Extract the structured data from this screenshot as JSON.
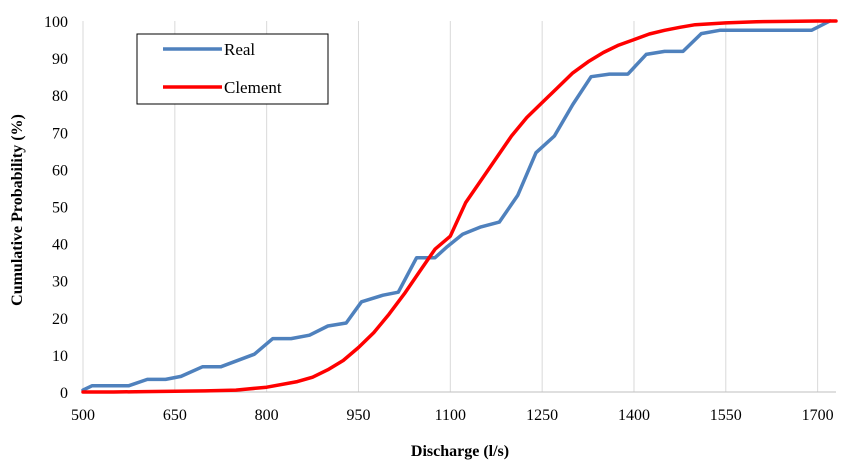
{
  "chart_data": {
    "type": "line",
    "title": "",
    "xlabel": "Discharge (l/s)",
    "ylabel": "Cumulative Probability (%)",
    "xlim": [
      500,
      1730
    ],
    "ylim": [
      0,
      100
    ],
    "xticks": [
      500,
      650,
      800,
      950,
      1100,
      1250,
      1400,
      1550,
      1700
    ],
    "yticks": [
      0,
      10,
      20,
      30,
      40,
      50,
      60,
      70,
      80,
      90,
      100
    ],
    "grid": "vertical",
    "legend": "top-left",
    "series": [
      {
        "name": "Real",
        "color": "#4f81bd",
        "x": [
          500,
          515,
          575,
          605,
          635,
          660,
          695,
          725,
          780,
          810,
          840,
          870,
          900,
          930,
          955,
          990,
          1015,
          1045,
          1075,
          1095,
          1120,
          1150,
          1180,
          1210,
          1240,
          1270,
          1300,
          1330,
          1360,
          1390,
          1420,
          1450,
          1480,
          1510,
          1540,
          1570,
          1600,
          1630,
          1660,
          1690,
          1720
        ],
        "values": [
          0.5,
          1.7,
          1.7,
          3.4,
          3.4,
          4.2,
          6.8,
          6.8,
          10.2,
          14.4,
          14.4,
          15.3,
          17.8,
          18.6,
          24.3,
          26.1,
          26.9,
          36.2,
          36.2,
          39.2,
          42.5,
          44.5,
          45.8,
          53,
          64.5,
          69,
          77.5,
          85,
          85.7,
          85.7,
          91,
          91.8,
          91.8,
          96.6,
          97.5,
          97.5,
          97.5,
          97.5,
          97.5,
          97.5,
          100
        ]
      },
      {
        "name": "Clement",
        "color": "#ff0000",
        "x": [
          500,
          550,
          600,
          650,
          700,
          750,
          800,
          850,
          875,
          900,
          925,
          950,
          975,
          1000,
          1025,
          1050,
          1075,
          1100,
          1125,
          1150,
          1175,
          1200,
          1225,
          1250,
          1275,
          1300,
          1325,
          1350,
          1375,
          1400,
          1425,
          1450,
          1475,
          1500,
          1550,
          1600,
          1650,
          1700,
          1730
        ],
        "values": [
          0,
          0,
          0.1,
          0.2,
          0.3,
          0.5,
          1.3,
          2.8,
          4,
          6,
          8.5,
          12,
          16,
          21,
          26.5,
          32.5,
          38.5,
          42,
          51,
          57,
          63,
          69,
          74,
          78,
          82,
          86,
          89,
          91.5,
          93.5,
          95,
          96.5,
          97.5,
          98.3,
          99,
          99.5,
          99.8,
          99.9,
          100,
          100
        ]
      }
    ]
  }
}
